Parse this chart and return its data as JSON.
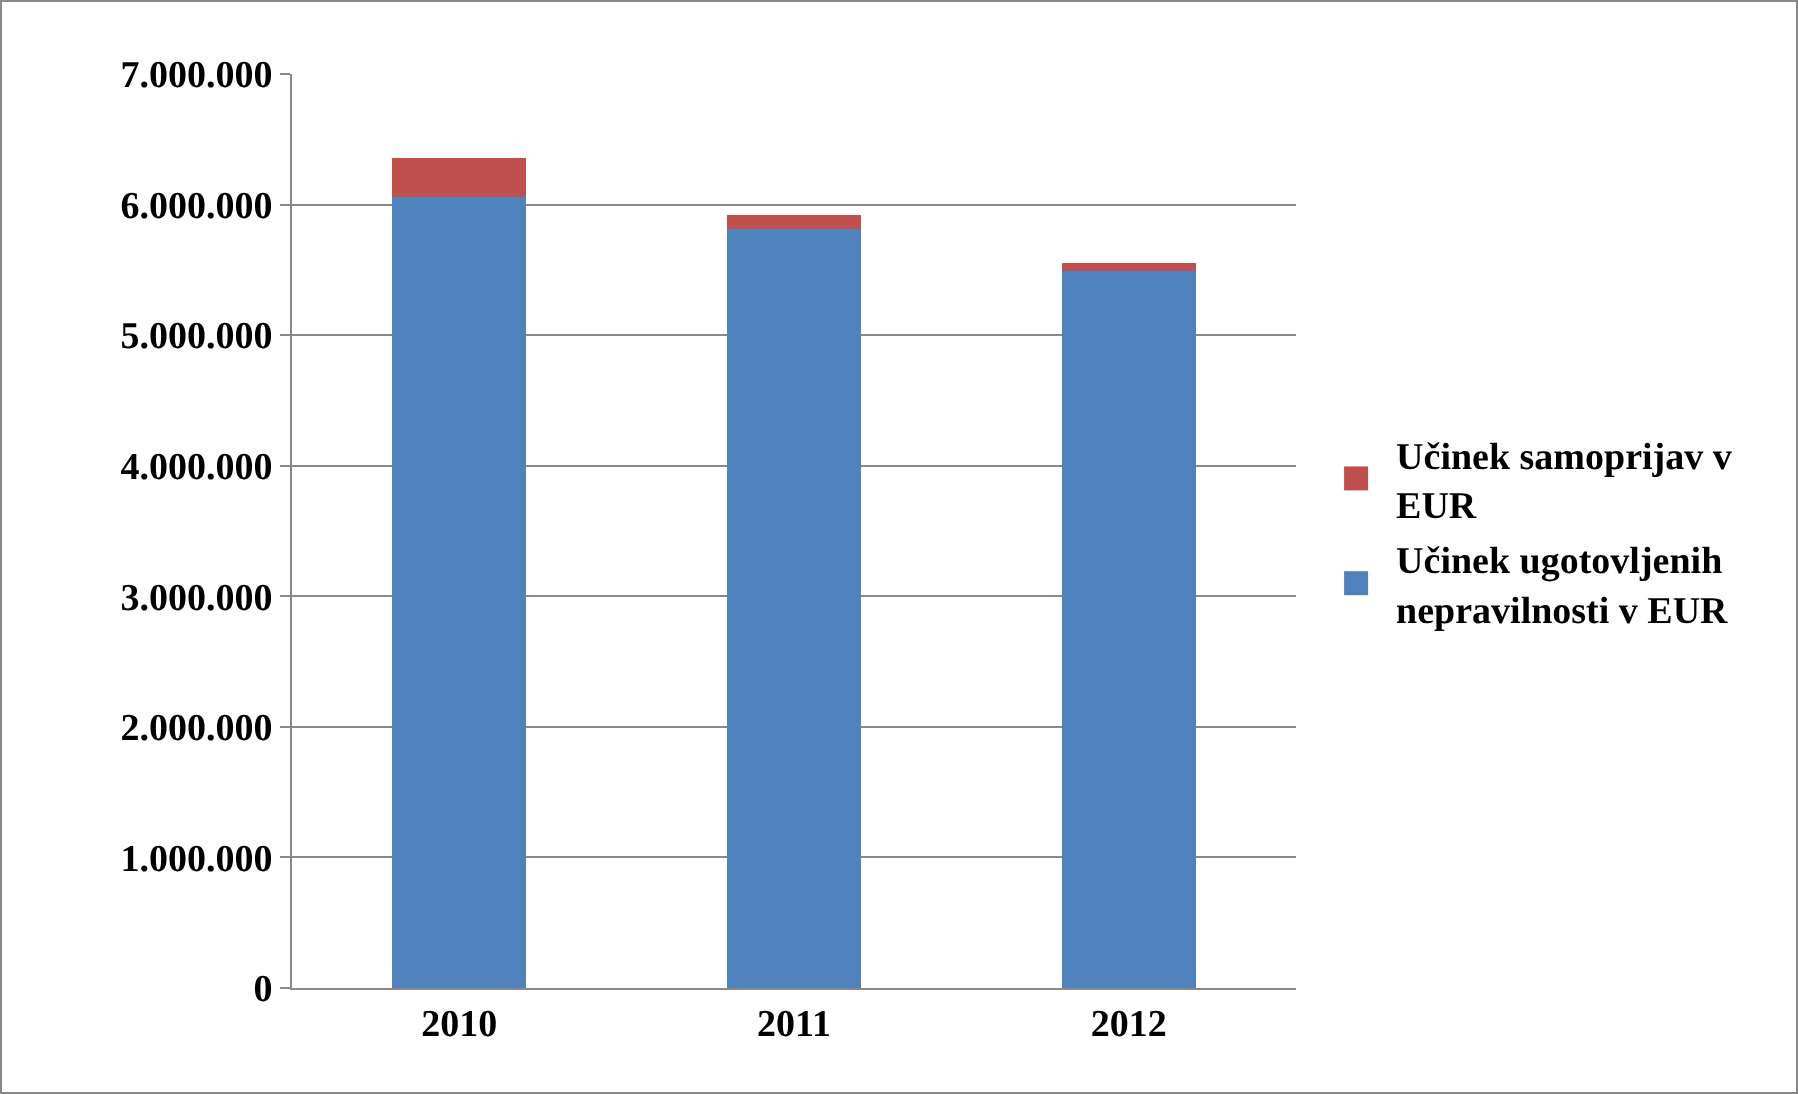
{
  "chart_data": {
    "type": "bar",
    "categories": [
      "2010",
      "2011",
      "2012"
    ],
    "stacked": true,
    "series": [
      {
        "name": "Učinek ugotovljenih nepravilnosti v EUR",
        "color": "#4f81bd",
        "values": [
          6060000,
          5810000,
          5490000
        ]
      },
      {
        "name": "Učinek samoprijav v EUR",
        "color": "#c0504d",
        "values": [
          300000,
          110000,
          60000
        ]
      }
    ],
    "ylim": [
      0,
      7000000
    ],
    "yticks": [
      {
        "value": 0,
        "label": "0"
      },
      {
        "value": 1000000,
        "label": "1.000.000"
      },
      {
        "value": 2000000,
        "label": "2.000.000"
      },
      {
        "value": 3000000,
        "label": "3.000.000"
      },
      {
        "value": 4000000,
        "label": "4.000.000"
      },
      {
        "value": 5000000,
        "label": "5.000.000"
      },
      {
        "value": 6000000,
        "label": "6.000.000"
      },
      {
        "value": 7000000,
        "label": "7.000.000"
      }
    ],
    "grid": "y",
    "legend": "right"
  }
}
